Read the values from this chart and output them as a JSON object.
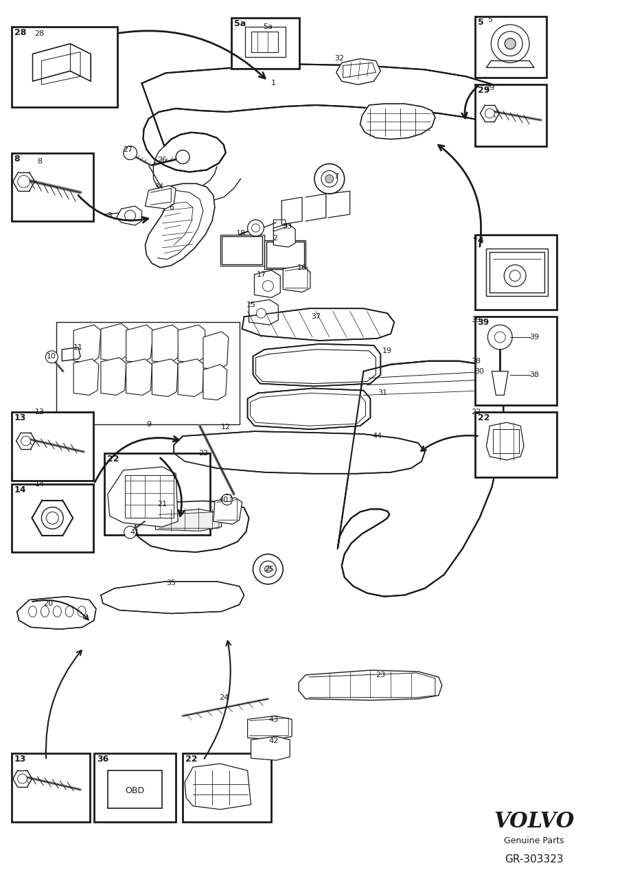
{
  "bg_color": "#ffffff",
  "line_color": "#1a1a1a",
  "fig_width": 9.06,
  "fig_height": 12.99,
  "dpi": 100,
  "volvo_text": "VOLVO",
  "genuine_parts": "Genuine Parts",
  "part_number": "GR-303323"
}
